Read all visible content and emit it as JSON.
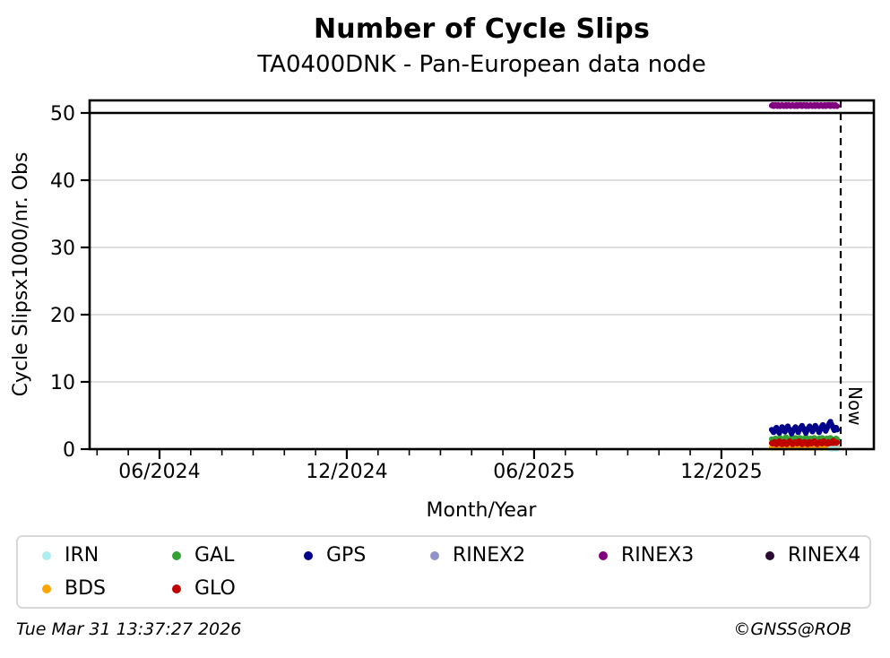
{
  "header": {
    "title": "Number of Cycle Slips",
    "subtitle": "TA0400DNK - Pan-European data node"
  },
  "footer": {
    "timestamp": "Tue Mar 31 13:37:27 2026",
    "credit": "©GNSS@ROB"
  },
  "legend": {
    "items": [
      {
        "label": "IRN",
        "color": "#AFEEEE"
      },
      {
        "label": "GAL",
        "color": "#35A035"
      },
      {
        "label": "GPS",
        "color": "#00008B"
      },
      {
        "label": "RINEX2",
        "color": "#9191C8"
      },
      {
        "label": "RINEX3",
        "color": "#800080"
      },
      {
        "label": "RINEX4",
        "color": "#2A0A33"
      },
      {
        "label": "BDS",
        "color": "#FFA500"
      },
      {
        "label": "GLO",
        "color": "#C00000"
      }
    ]
  },
  "chart_data": {
    "type": "scatter",
    "title": "Number of Cycle Slips",
    "subtitle": "TA0400DNK - Pan-European data node",
    "xlabel": "Month/Year",
    "ylabel": "Cycle Slipsx1000/nr. Obs",
    "ylim": [
      0,
      51.9
    ],
    "y_ticks": [
      0,
      10,
      20,
      30,
      40,
      50
    ],
    "grid": "horizontal-light-gray",
    "cap_line_y": 50,
    "x_axis_start": "04/2024",
    "x_axis_end": "04/2026",
    "x_minor_tick_interval_months": 1,
    "x_major_ticks": [
      "06/2024",
      "12/2024",
      "06/2025",
      "12/2025"
    ],
    "now_line": {
      "label": "Now",
      "date": "2026-03-31"
    },
    "series_start_date": "2026-01-20",
    "series_interval_days": 1,
    "series": [
      {
        "name": "RINEX3",
        "color": "#800080",
        "start_day": 0,
        "values": [
          51.1,
          51.2,
          51.0,
          51.1,
          51.2,
          51.1,
          51.0,
          51.2,
          51.1,
          51.0,
          51.1,
          51.2,
          51.1,
          51.0,
          51.1,
          51.2,
          51.0,
          51.1,
          51.2,
          51.1,
          51.0,
          51.1,
          51.2,
          51.1,
          51.0,
          51.1,
          51.2,
          51.0,
          51.1,
          51.2,
          51.1,
          51.2,
          51.0,
          51.1,
          51.2,
          51.1,
          51.0,
          51.2,
          51.1,
          51.0,
          51.1,
          51.2,
          51.1,
          51.0,
          51.1,
          51.2,
          51.0,
          51.1,
          51.2,
          51.1,
          51.0,
          51.1,
          51.2,
          51.1,
          51.0,
          51.1,
          51.2,
          51.0,
          51.1,
          51.2,
          51.1,
          51.2,
          51.0,
          51.1,
          51.2,
          51.1,
          51.0,
          51.2,
          51.1,
          51.0
        ]
      },
      {
        "name": "BDS",
        "color": "#FFA500",
        "start_day": 0,
        "values": [
          0.3,
          0.2,
          0.4,
          0.3,
          0.2,
          0.3,
          0.4,
          0.2,
          0.3,
          0.4,
          0.3,
          0.2,
          0.3,
          0.4,
          0.3,
          0.2,
          0.4,
          0.3,
          0.2,
          0.3,
          0.4,
          0.3,
          0.2,
          0.3,
          0.4,
          0.2,
          0.3,
          0.4,
          0.3,
          0.2,
          0.3,
          0.4,
          0.3,
          0.2,
          0.4,
          0.3,
          0.2,
          0.3,
          0.4,
          0.3,
          0.2,
          0.3,
          0.4,
          0.2,
          0.3,
          0.4,
          0.3,
          0.2,
          0.3,
          0.4,
          0.3,
          0.2,
          0.4,
          0.3,
          0.2,
          0.3,
          0.4,
          0.3,
          0.2,
          0.3,
          0.4,
          0.3,
          0.2,
          0.3,
          0.4,
          0.2,
          0.3,
          0.4,
          0.3,
          0.2
        ]
      },
      {
        "name": "GAL",
        "color": "#35A035",
        "start_day": 0,
        "values": [
          1.5,
          1.4,
          1.3,
          1.5,
          1.6,
          1.4,
          1.3,
          1.4,
          1.6,
          1.7,
          1.5,
          1.4,
          1.3,
          1.5,
          1.6,
          1.8,
          1.6,
          1.4,
          1.3,
          1.5,
          1.6,
          1.4,
          1.3,
          1.4,
          1.6,
          1.7,
          1.5,
          1.4,
          1.3,
          1.5,
          1.7,
          1.6,
          1.4,
          1.3,
          1.5,
          1.6,
          1.8,
          1.6,
          1.4,
          1.3,
          1.4,
          1.6,
          1.5,
          1.4,
          1.6,
          1.7,
          1.5,
          1.4,
          1.3,
          1.5,
          1.6,
          1.4,
          1.5,
          1.7,
          1.6,
          1.4,
          1.3,
          1.5,
          1.6,
          1.5,
          1.4,
          1.6,
          1.7,
          1.5,
          1.4,
          1.3,
          1.5,
          1.4,
          1.6,
          1.5
        ]
      },
      {
        "name": "GLO",
        "color": "#C00000",
        "start_day": 0,
        "values": [
          0.9,
          0.8,
          1.0,
          1.1,
          0.9,
          0.7,
          0.8,
          1.0,
          1.2,
          1.0,
          0.8,
          0.7,
          0.9,
          1.1,
          1.0,
          0.8,
          0.7,
          0.9,
          1.0,
          1.2,
          1.0,
          0.9,
          0.7,
          0.8,
          1.0,
          1.1,
          0.9,
          0.8,
          1.0,
          1.2,
          1.1,
          0.9,
          0.7,
          0.8,
          1.0,
          1.1,
          0.9,
          0.8,
          0.7,
          0.9,
          1.1,
          1.0,
          0.8,
          0.9,
          1.1,
          1.2,
          1.0,
          0.8,
          0.7,
          0.9,
          1.0,
          1.1,
          0.9,
          0.8,
          1.0,
          1.2,
          1.1,
          0.9,
          0.8,
          1.0,
          1.1,
          0.9,
          0.7,
          0.8,
          1.0,
          1.3,
          1.0,
          0.8,
          0.9,
          1.0
        ]
      },
      {
        "name": "GPS",
        "color": "#00008B",
        "start_day": 0,
        "values": [
          2.9,
          2.7,
          2.5,
          2.8,
          3.0,
          3.2,
          2.9,
          2.6,
          2.4,
          2.7,
          3.0,
          3.3,
          3.1,
          2.8,
          2.6,
          2.9,
          3.2,
          3.4,
          3.1,
          2.9,
          2.6,
          2.3,
          2.6,
          2.9,
          3.1,
          3.3,
          3.0,
          2.8,
          2.5,
          2.8,
          3.1,
          3.3,
          3.5,
          3.2,
          2.9,
          2.7,
          2.4,
          2.7,
          3.0,
          3.2,
          3.4,
          3.1,
          2.9,
          2.6,
          2.9,
          3.2,
          3.5,
          3.3,
          3.0,
          2.8,
          2.5,
          2.8,
          3.1,
          3.4,
          3.6,
          3.3,
          3.0,
          2.7,
          3.0,
          3.3,
          3.6,
          3.9,
          4.1,
          3.7,
          3.4,
          3.1,
          2.8,
          3.0,
          3.2,
          2.9
        ]
      },
      {
        "name": "IRN",
        "color": "#AFEEEE",
        "start_day": 62,
        "values": [
          0.05,
          0.07,
          0.04,
          0.06,
          0.05,
          0.08,
          0.05,
          0.06
        ]
      },
      {
        "name": "RINEX2",
        "color": "#9191C8",
        "start_day": 0,
        "values": []
      },
      {
        "name": "RINEX4",
        "color": "#2A0A33",
        "start_day": 0,
        "values": []
      }
    ]
  }
}
